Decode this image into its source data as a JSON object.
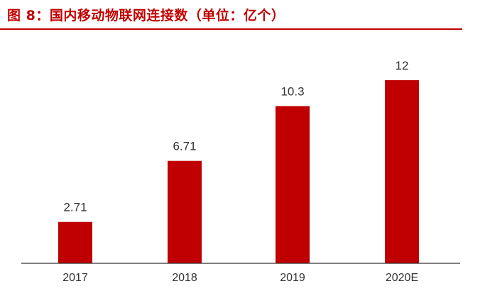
{
  "title": "图 8：国内移动物联网连接数（单位：亿个）",
  "colors": {
    "bar": "#c00000",
    "title": "#c00000",
    "axis": "#333333",
    "text": "#333333"
  },
  "chart_data": {
    "type": "bar",
    "title": "图 8：国内移动物联网连接数（单位：亿个）",
    "categories": [
      "2017",
      "2018",
      "2019",
      "2020E"
    ],
    "values": [
      2.71,
      6.71,
      10.3,
      12
    ],
    "value_labels": [
      "2.71",
      "6.71",
      "10.3",
      "12"
    ],
    "xlabel": "",
    "ylabel": "",
    "ylim": [
      0,
      12.6
    ],
    "grid": false,
    "legend": "none"
  }
}
